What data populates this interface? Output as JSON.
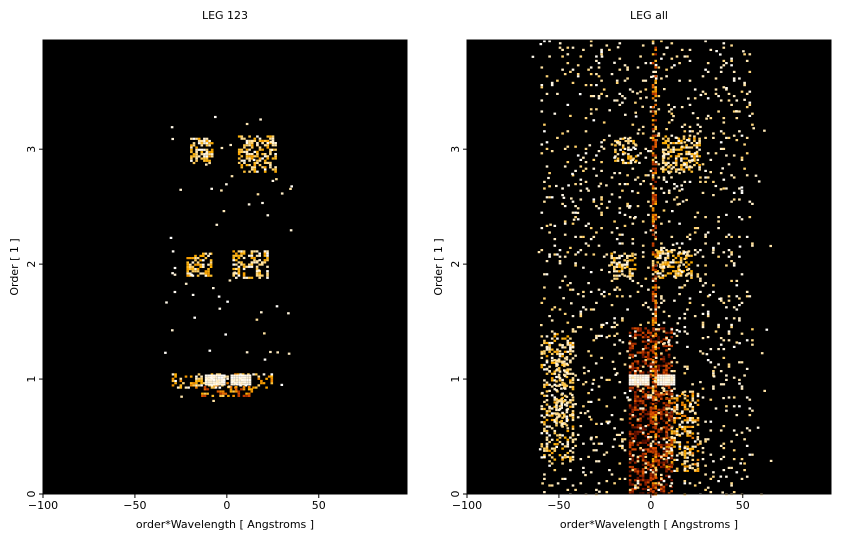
{
  "chart_data": [
    {
      "type": "heatmap",
      "title": "LEG 123",
      "xlabel": "order*Wavelength [ Angstroms ]",
      "ylabel": "Order [ 1 ]",
      "xlim": [
        -100,
        98
      ],
      "ylim": [
        0,
        3.95
      ],
      "xticks": [
        -100,
        -50,
        0,
        50
      ],
      "yticks": [
        0,
        1,
        2,
        3
      ],
      "background_color": "#000000",
      "colormap": [
        "#000000",
        "#7a1500",
        "#d84a00",
        "#ffb000",
        "#ffffff"
      ],
      "grid": false,
      "clusters": [
        {
          "x": [
            -20,
            -8
          ],
          "y": [
            2.88,
            3.1
          ],
          "density": 0.55,
          "level": [
            0.7,
            1.0
          ]
        },
        {
          "x": [
            6,
            27
          ],
          "y": [
            2.8,
            3.12
          ],
          "density": 0.5,
          "level": [
            0.7,
            1.0
          ]
        },
        {
          "x": [
            -22,
            -8
          ],
          "y": [
            1.9,
            2.1
          ],
          "density": 0.45,
          "level": [
            0.7,
            1.0
          ]
        },
        {
          "x": [
            3,
            22
          ],
          "y": [
            1.88,
            2.12
          ],
          "density": 0.5,
          "level": [
            0.7,
            1.0
          ]
        },
        {
          "x": [
            -30,
            25
          ],
          "y": [
            0.92,
            1.05
          ],
          "density": 0.35,
          "level": [
            0.6,
            1.0
          ]
        },
        {
          "x": [
            -12,
            -2
          ],
          "y": [
            0.95,
            1.04
          ],
          "density": 1.0,
          "level": [
            0.95,
            1.0
          ]
        },
        {
          "x": [
            2,
            12
          ],
          "y": [
            0.95,
            1.04
          ],
          "density": 1.0,
          "level": [
            0.95,
            1.0
          ]
        },
        {
          "x": [
            -14,
            14
          ],
          "y": [
            0.86,
            0.94
          ],
          "density": 0.45,
          "level": [
            0.35,
            0.85
          ]
        }
      ],
      "scatter": [
        {
          "x": [
            -35,
            35
          ],
          "y": [
            0.8,
            3.3
          ],
          "count": 70,
          "level": [
            0.9,
            1.0
          ]
        }
      ]
    },
    {
      "type": "heatmap",
      "title": "LEG all",
      "xlabel": "order*Wavelength [ Angstroms ]",
      "ylabel": "Order [ 1 ]",
      "xlim": [
        -100,
        98
      ],
      "ylim": [
        0,
        3.95
      ],
      "xticks": [
        -100,
        -50,
        0,
        50
      ],
      "yticks": [
        0,
        1,
        2,
        3
      ],
      "background_color": "#000000",
      "colormap": [
        "#000000",
        "#7a1500",
        "#d84a00",
        "#ffb000",
        "#ffffff"
      ],
      "grid": false,
      "clusters": [
        {
          "x": [
            -20,
            -8
          ],
          "y": [
            2.88,
            3.1
          ],
          "density": 0.55,
          "level": [
            0.7,
            1.0
          ]
        },
        {
          "x": [
            6,
            27
          ],
          "y": [
            2.8,
            3.12
          ],
          "density": 0.5,
          "level": [
            0.7,
            1.0
          ]
        },
        {
          "x": [
            -22,
            -8
          ],
          "y": [
            1.9,
            2.1
          ],
          "density": 0.45,
          "level": [
            0.7,
            1.0
          ]
        },
        {
          "x": [
            3,
            22
          ],
          "y": [
            1.88,
            2.12
          ],
          "density": 0.5,
          "level": [
            0.7,
            1.0
          ]
        },
        {
          "x": [
            -60,
            -42
          ],
          "y": [
            0.3,
            1.4
          ],
          "density": 0.3,
          "level": [
            0.7,
            1.0
          ]
        },
        {
          "x": [
            -52,
            -45
          ],
          "y": [
            0.6,
            1.2
          ],
          "density": 0.45,
          "level": [
            0.8,
            1.0
          ]
        },
        {
          "x": [
            8,
            25
          ],
          "y": [
            0.2,
            0.9
          ],
          "density": 0.35,
          "level": [
            0.6,
            1.0
          ]
        },
        {
          "x": [
            -12,
            12
          ],
          "y": [
            0.0,
            1.45
          ],
          "density": 0.4,
          "level": [
            0.15,
            0.55
          ]
        },
        {
          "x": [
            -12,
            -2
          ],
          "y": [
            0.95,
            1.04
          ],
          "density": 1.0,
          "level": [
            0.95,
            1.0
          ]
        },
        {
          "x": [
            2,
            12
          ],
          "y": [
            0.95,
            1.04
          ],
          "density": 1.0,
          "level": [
            0.95,
            1.0
          ]
        },
        {
          "x": [
            -60,
            55
          ],
          "y": [
            0,
            3.95
          ],
          "density": 0.07,
          "level": [
            0.85,
            1.0
          ]
        },
        {
          "x": [
            0.5,
            3
          ],
          "y": [
            0,
            3.95
          ],
          "density": 0.55,
          "level": [
            0.3,
            0.95
          ]
        }
      ],
      "scatter": [
        {
          "x": [
            -65,
            65
          ],
          "y": [
            0,
            3.95
          ],
          "count": 160,
          "level": [
            0.9,
            1.0
          ]
        }
      ]
    }
  ]
}
